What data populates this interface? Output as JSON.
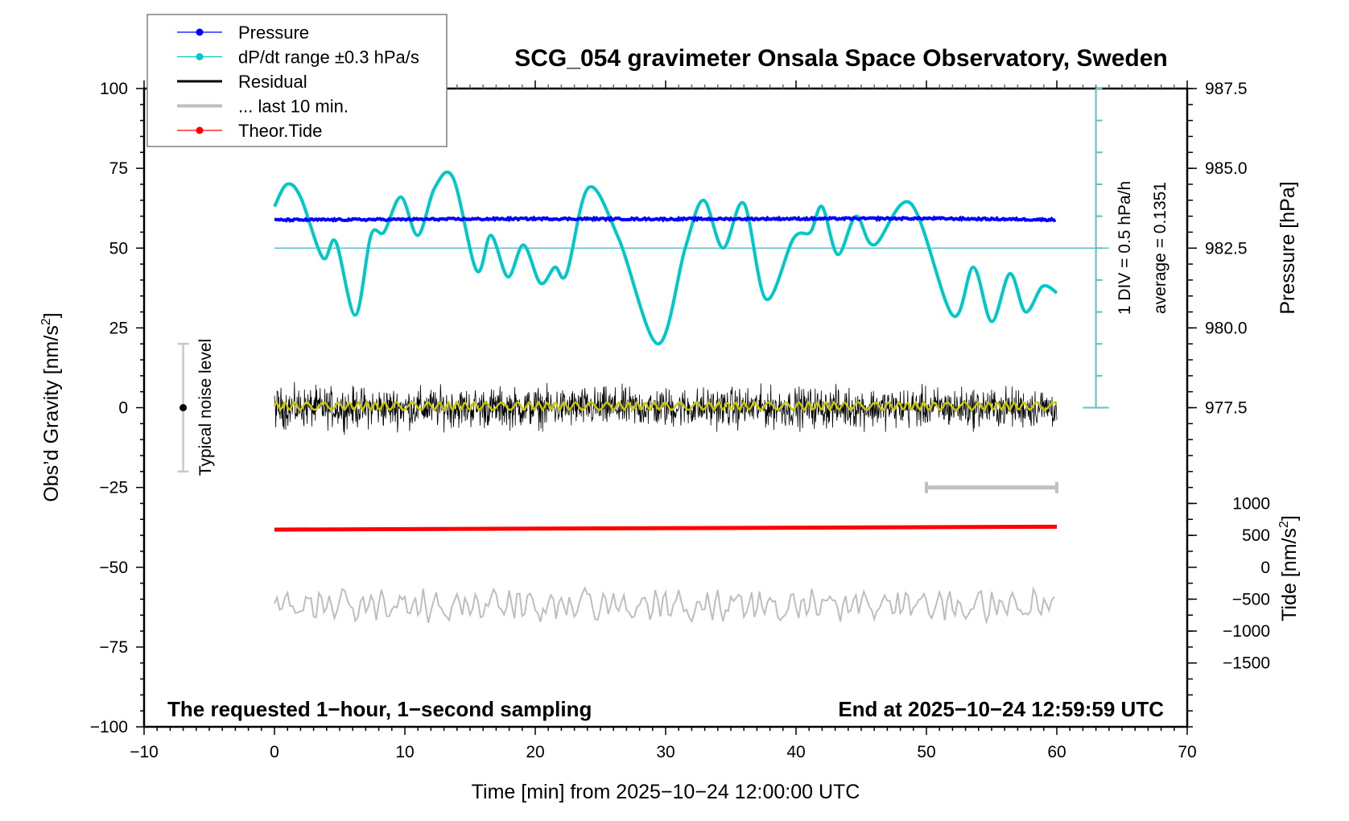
{
  "chart_data": {
    "type": "line",
    "title": "SCG_054 gravimeter Onsala Space Observatory, Sweden",
    "xlabel": "Time [min] from 2025−10−24 12:00:00 UTC",
    "ylabel_left": "Obs’d Gravity [nm/s",
    "ylabel_left_sup": "2",
    "ylabel_left_end": "]",
    "ylabel_right_pressure": "Pressure [hPa]",
    "ylabel_right_tide": "Tide [nm/s",
    "ylabel_right_tide_sup": "2",
    "ylabel_right_tide_end": "]",
    "xlim": [
      -10,
      70
    ],
    "ylim": [
      -100,
      100
    ],
    "grid": false,
    "legend_placement": "top-left",
    "x_ticks": [
      -10,
      0,
      10,
      20,
      30,
      40,
      50,
      60,
      70
    ],
    "x_tick_labels": [
      "−10",
      "0",
      "10",
      "20",
      "30",
      "40",
      "50",
      "60",
      "70"
    ],
    "y_ticks": [
      100,
      75,
      50,
      25,
      0,
      -25,
      -50,
      -75,
      -100
    ],
    "y_tick_labels": [
      "100",
      "75",
      "50",
      "25",
      "0",
      "−25",
      "−50",
      "−75",
      "−100"
    ],
    "pressure_axis": {
      "ticks": [
        987.5,
        985.0,
        982.5,
        980.0,
        977.5
      ],
      "tick_labels": [
        "987.5",
        "985.0",
        "982.5",
        "980.0",
        "977.5"
      ],
      "gravity_at_982_5": 50,
      "gravity_per_hPa": 10
    },
    "tide_axis": {
      "ticks": [
        1000,
        500,
        0,
        -500,
        -1000,
        -1500
      ],
      "tick_labels": [
        "1000",
        "500",
        "0",
        "−500",
        "−1000",
        "−1500"
      ],
      "gravity_at_0": -50,
      "gravity_per_500": 10
    },
    "legend": [
      {
        "label": "Pressure",
        "color": "#0000ff",
        "marker": true
      },
      {
        "label": "dP/dt range ±0.3 hPa/s",
        "color": "#00c8c8",
        "marker": true
      },
      {
        "label": "Residual",
        "color": "#000000",
        "marker": false
      },
      {
        "label": "... last 10 min.",
        "color": "#bebebe",
        "marker": false
      },
      {
        "label": "Theor.Tide",
        "color": "#ff0000",
        "marker": true
      }
    ],
    "series": [
      {
        "name": "Pressure",
        "color": "#0000ff",
        "x": [
          0,
          10,
          20,
          30,
          40,
          50,
          60
        ],
        "y": [
          58.8,
          59.0,
          59.2,
          59.1,
          59.2,
          59.3,
          58.9
        ],
        "noise_amplitude": 0.6
      },
      {
        "name": "dP/dt",
        "color": "#00c8c8",
        "x": [
          0,
          0.95,
          2.0,
          3.7,
          4.7,
          6.2,
          7.4,
          8.4,
          9.7,
          11.0,
          12.3,
          13.7,
          15.5,
          16.6,
          17.9,
          19.1,
          20.4,
          21.5,
          22.4,
          24.1,
          26.4,
          29.4,
          31.5,
          32.9,
          34.4,
          36.0,
          37.7,
          39.8,
          41.1,
          42.0,
          43.2,
          44.6,
          46.0,
          48.8,
          52.0,
          53.6,
          55.0,
          56.4,
          57.6,
          58.9,
          60.0
        ],
        "y": [
          63,
          70,
          66,
          47,
          52,
          29,
          54,
          55,
          66,
          54,
          69,
          72,
          43,
          54,
          41,
          51,
          39,
          44,
          42,
          69,
          53,
          20,
          50,
          65,
          50,
          64,
          34,
          53,
          55,
          63,
          48,
          60,
          51,
          64,
          29,
          44,
          27,
          42,
          30,
          38,
          36
        ]
      },
      {
        "name": "Residual",
        "color": "#000000",
        "x_range": [
          0,
          60
        ],
        "center": 0,
        "amplitude": 9
      },
      {
        "name": "Residual smoothed",
        "color": "#c8c800",
        "x_range": [
          0,
          60
        ],
        "center": 0.5,
        "amplitude": 1.2
      },
      {
        "name": "Theor.Tide",
        "color": "#ff0000",
        "x": [
          0,
          60
        ],
        "y": [
          -38.2,
          -37.3
        ]
      },
      {
        "name": "... last 10 min.",
        "color": "#bebebe",
        "x_range": [
          0,
          60
        ],
        "center": -62,
        "amplitude": 5
      }
    ],
    "noise_level_bar": {
      "x": -7,
      "y_center": 0,
      "y_range": [
        -20,
        20
      ]
    },
    "last_10_min_bracket": {
      "x_range": [
        50,
        60
      ],
      "y": -25
    },
    "dpdt_scale_bar": {
      "x": 63,
      "y_range": [
        0,
        100
      ],
      "div_gravity": 10,
      "reference_y": 50
    },
    "annotations": {
      "noise_label": "Typical noise level",
      "div_label": "1 DIV = 0.5 hPa/h",
      "average_label": "average = 0.1351",
      "note_left": "The requested 1−hour, 1−second sampling",
      "note_right": "End at 2025−10−24 12:59:59 UTC"
    }
  }
}
